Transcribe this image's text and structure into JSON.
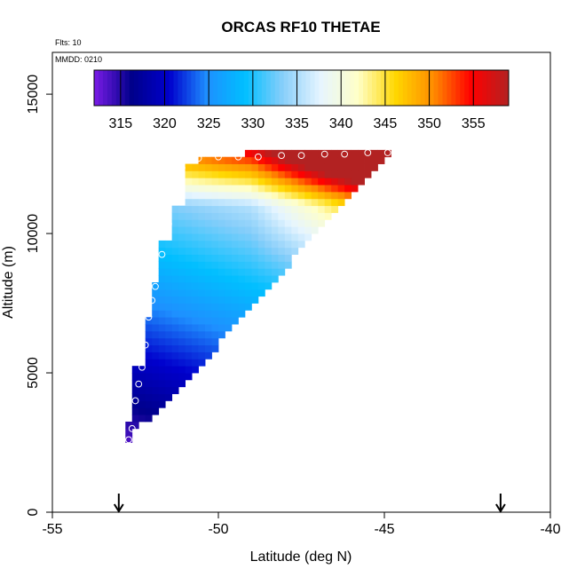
{
  "chart_data": {
    "type": "heatmap",
    "title": "ORCAS RF10 THETAE",
    "annotations": [
      "Flts: 10",
      "MMDD: 0210"
    ],
    "xlabel": "Latitude (deg N)",
    "ylabel": "Altitude (m)",
    "xlim": [
      -55,
      -40
    ],
    "ylim": [
      0,
      16500
    ],
    "xticks": [
      -55,
      -50,
      -45,
      -40
    ],
    "xtick_labels": [
      "-55",
      "-50",
      "-45",
      "-40"
    ],
    "yticks": [
      0,
      5000,
      10000,
      15000
    ],
    "ytick_labels": [
      "0",
      "5000",
      "10000",
      "15000"
    ],
    "colorbar": {
      "range": [
        312,
        359
      ],
      "ticks": [
        315,
        320,
        325,
        330,
        335,
        340,
        345,
        350,
        355
      ],
      "tick_labels": [
        "315",
        "320",
        "325",
        "330",
        "335",
        "340",
        "345",
        "350",
        "355"
      ],
      "palette": [
        "#7a1ce6",
        "#00008b",
        "#0000cd",
        "#1e90ff",
        "#00bfff",
        "#87cefa",
        "#e6f5ff",
        "#ffffc8",
        "#ffd700",
        "#ff8c00",
        "#ff0000",
        "#b22222"
      ]
    },
    "cell_size": {
      "dlat": 0.2,
      "dz": 250
    },
    "columns": [
      {
        "lat": -52.7,
        "z0": 2500,
        "z1": 3250
      },
      {
        "lat": -52.5,
        "z0": 3000,
        "z1": 5250
      },
      {
        "lat": -52.3,
        "z0": 3250,
        "z1": 5250
      },
      {
        "lat": -52.1,
        "z0": 3250,
        "z1": 7000
      },
      {
        "lat": -51.9,
        "z0": 3500,
        "z1": 8250
      },
      {
        "lat": -51.7,
        "z0": 3750,
        "z1": 9750
      },
      {
        "lat": -51.5,
        "z0": 4000,
        "z1": 9750
      },
      {
        "lat": -51.3,
        "z0": 4250,
        "z1": 11000
      },
      {
        "lat": -51.1,
        "z0": 4500,
        "z1": 11000
      },
      {
        "lat": -50.9,
        "z0": 4750,
        "z1": 12500
      },
      {
        "lat": -50.7,
        "z0": 5000,
        "z1": 12500
      },
      {
        "lat": -50.5,
        "z0": 5250,
        "z1": 12750
      },
      {
        "lat": -50.3,
        "z0": 5500,
        "z1": 12750
      },
      {
        "lat": -50.1,
        "z0": 5750,
        "z1": 12750
      },
      {
        "lat": -49.9,
        "z0": 6250,
        "z1": 12750
      },
      {
        "lat": -49.7,
        "z0": 6500,
        "z1": 12750
      },
      {
        "lat": -49.5,
        "z0": 6750,
        "z1": 12750
      },
      {
        "lat": -49.3,
        "z0": 7000,
        "z1": 12750
      },
      {
        "lat": -49.1,
        "z0": 7250,
        "z1": 13000
      },
      {
        "lat": -48.9,
        "z0": 7500,
        "z1": 13000
      },
      {
        "lat": -48.7,
        "z0": 7750,
        "z1": 13000
      },
      {
        "lat": -48.5,
        "z0": 8000,
        "z1": 13000
      },
      {
        "lat": -48.3,
        "z0": 8250,
        "z1": 13000
      },
      {
        "lat": -48.1,
        "z0": 8500,
        "z1": 13000
      },
      {
        "lat": -47.9,
        "z0": 8750,
        "z1": 13000
      },
      {
        "lat": -47.7,
        "z0": 9250,
        "z1": 13000
      },
      {
        "lat": -47.5,
        "z0": 9500,
        "z1": 13000
      },
      {
        "lat": -47.3,
        "z0": 9750,
        "z1": 13000
      },
      {
        "lat": -47.1,
        "z0": 10000,
        "z1": 13000
      },
      {
        "lat": -46.9,
        "z0": 10250,
        "z1": 13000
      },
      {
        "lat": -46.7,
        "z0": 10500,
        "z1": 13000
      },
      {
        "lat": -46.5,
        "z0": 10750,
        "z1": 13000
      },
      {
        "lat": -46.3,
        "z0": 11000,
        "z1": 13000
      },
      {
        "lat": -46.1,
        "z0": 11250,
        "z1": 13000
      },
      {
        "lat": -45.9,
        "z0": 11500,
        "z1": 13000
      },
      {
        "lat": -45.7,
        "z0": 11750,
        "z1": 13000
      },
      {
        "lat": -45.5,
        "z0": 12000,
        "z1": 13000
      },
      {
        "lat": -45.3,
        "z0": 12250,
        "z1": 13000
      },
      {
        "lat": -45.1,
        "z0": 12500,
        "z1": 13000
      },
      {
        "lat": -44.9,
        "z0": 12750,
        "z1": 13000
      }
    ],
    "flight_points": [
      {
        "lat": -52.7,
        "alt": 2600
      },
      {
        "lat": -52.6,
        "alt": 3000
      },
      {
        "lat": -52.5,
        "alt": 4000
      },
      {
        "lat": -52.4,
        "alt": 4600
      },
      {
        "lat": -52.3,
        "alt": 5200
      },
      {
        "lat": -52.2,
        "alt": 6000
      },
      {
        "lat": -52.1,
        "alt": 7000
      },
      {
        "lat": -52.0,
        "alt": 7600
      },
      {
        "lat": -51.9,
        "alt": 8100
      },
      {
        "lat": -51.7,
        "alt": 9250
      },
      {
        "lat": -51.5,
        "alt": 10350
      },
      {
        "lat": -51.1,
        "alt": 12350
      },
      {
        "lat": -50.6,
        "alt": 12700
      },
      {
        "lat": -50.0,
        "alt": 12750
      },
      {
        "lat": -49.4,
        "alt": 12750
      },
      {
        "lat": -48.8,
        "alt": 12750
      },
      {
        "lat": -48.1,
        "alt": 12800
      },
      {
        "lat": -47.5,
        "alt": 12800
      },
      {
        "lat": -46.8,
        "alt": 12850
      },
      {
        "lat": -46.2,
        "alt": 12850
      },
      {
        "lat": -45.5,
        "alt": 12900
      },
      {
        "lat": -44.9,
        "alt": 12900
      }
    ],
    "arrows_lat": [
      -53.0,
      -41.5
    ]
  }
}
